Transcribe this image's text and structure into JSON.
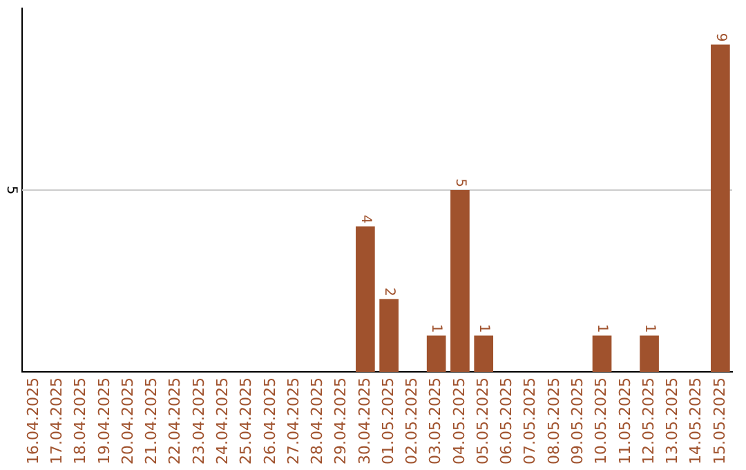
{
  "chart_data": {
    "type": "bar",
    "categories": [
      "16.04.2025",
      "17.04.2025",
      "18.04.2025",
      "19.04.2025",
      "20.04.2025",
      "21.04.2025",
      "22.04.2025",
      "23.04.2025",
      "24.04.2025",
      "25.04.2025",
      "26.04.2025",
      "27.04.2025",
      "28.04.2025",
      "29.04.2025",
      "30.04.2025",
      "01.05.2025",
      "02.05.2025",
      "03.05.2025",
      "04.05.2025",
      "05.05.2025",
      "06.05.2025",
      "07.05.2025",
      "08.05.2025",
      "09.05.2025",
      "10.05.2025",
      "11.05.2025",
      "12.05.2025",
      "13.05.2025",
      "14.05.2025",
      "15.05.2025"
    ],
    "values": [
      null,
      null,
      null,
      null,
      null,
      null,
      null,
      null,
      null,
      null,
      null,
      null,
      null,
      null,
      4,
      2,
      null,
      1,
      5,
      1,
      null,
      null,
      null,
      null,
      1,
      null,
      1,
      null,
      null,
      9
    ],
    "value_labels": [
      null,
      null,
      null,
      null,
      null,
      null,
      null,
      null,
      null,
      null,
      null,
      null,
      null,
      null,
      "4",
      "2",
      null,
      "1",
      "5",
      "1",
      null,
      null,
      null,
      null,
      "1",
      null,
      "1",
      null,
      null,
      "9"
    ],
    "color": "#a0522d",
    "ref_lines": [
      {
        "axis": "y",
        "value": 5,
        "label": "5",
        "color": "#cccccc"
      }
    ],
    "legend": false
  }
}
